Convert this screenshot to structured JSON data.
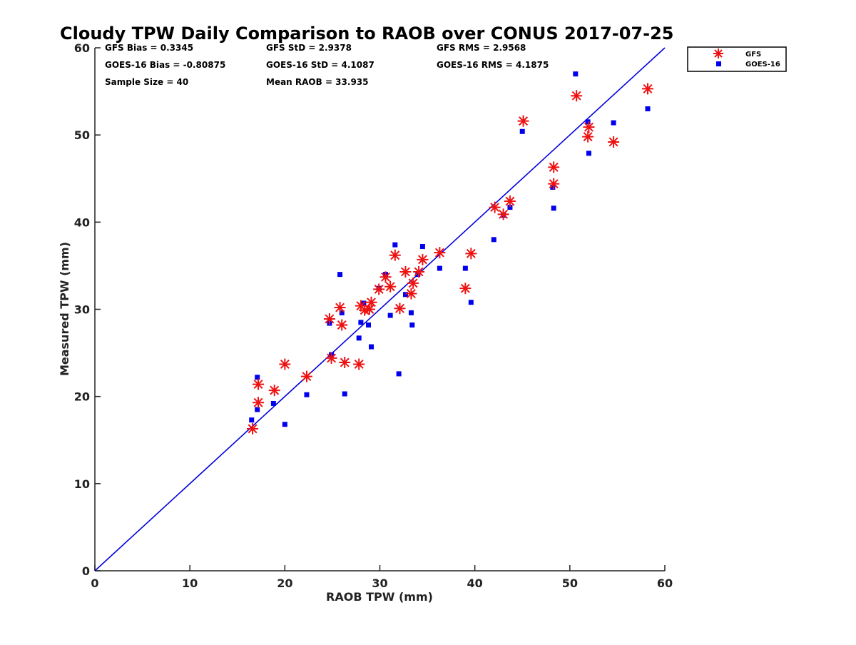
{
  "chart_data": {
    "type": "scatter",
    "title": "Cloudy TPW Daily Comparison to RAOB over CONUS 2017-07-25",
    "xlabel": "RAOB TPW (mm)",
    "ylabel": "Measured TPW (mm)",
    "xlim": [
      0,
      60
    ],
    "ylim": [
      0,
      60
    ],
    "xticks": [
      "0",
      "10",
      "20",
      "30",
      "40",
      "50",
      "60"
    ],
    "yticks": [
      "0",
      "10",
      "20",
      "30",
      "40",
      "50",
      "60"
    ],
    "reference_line": {
      "from": [
        0,
        0
      ],
      "to": [
        60,
        60
      ],
      "color": "#0000dd"
    },
    "stats": {
      "gfs_bias": "GFS Bias = 0.3345",
      "goes_bias": "GOES-16 Bias = -0.80875",
      "sample_size": "Sample Size = 40",
      "gfs_std": "GFS StD = 2.9378",
      "goes_std": "GOES-16 StD = 4.1087",
      "mean_raob": "Mean RAOB = 33.935",
      "gfs_rms": "GFS RMS = 2.9568",
      "goes_rms": "GOES-16 RMS = 4.1875"
    },
    "legend": {
      "position": "outside-top-right",
      "entries": [
        "GFS",
        "GOES-16"
      ]
    },
    "series": [
      {
        "name": "GFS",
        "marker": "asterisk",
        "color": "#ee1111",
        "points": [
          [
            16.6,
            16.3
          ],
          [
            17.2,
            19.3
          ],
          [
            17.2,
            21.4
          ],
          [
            18.9,
            20.7
          ],
          [
            20.0,
            23.7
          ],
          [
            22.3,
            22.3
          ],
          [
            24.7,
            28.9
          ],
          [
            24.9,
            24.4
          ],
          [
            25.8,
            30.2
          ],
          [
            26.0,
            28.2
          ],
          [
            26.3,
            23.9
          ],
          [
            27.8,
            23.7
          ],
          [
            28.0,
            30.4
          ],
          [
            28.4,
            29.9
          ],
          [
            28.9,
            30.0
          ],
          [
            29.1,
            30.8
          ],
          [
            29.9,
            32.3
          ],
          [
            30.6,
            33.7
          ],
          [
            31.1,
            32.6
          ],
          [
            31.6,
            36.2
          ],
          [
            32.1,
            30.1
          ],
          [
            32.7,
            34.3
          ],
          [
            33.3,
            31.8
          ],
          [
            33.5,
            33.0
          ],
          [
            34.1,
            34.3
          ],
          [
            34.5,
            35.7
          ],
          [
            36.3,
            36.5
          ],
          [
            39.0,
            32.4
          ],
          [
            39.6,
            36.4
          ],
          [
            42.1,
            41.7
          ],
          [
            43.0,
            40.9
          ],
          [
            43.7,
            42.4
          ],
          [
            45.1,
            51.6
          ],
          [
            48.3,
            44.4
          ],
          [
            48.3,
            46.3
          ],
          [
            50.7,
            54.5
          ],
          [
            51.9,
            49.8
          ],
          [
            52.0,
            50.9
          ],
          [
            54.6,
            49.2
          ],
          [
            58.2,
            55.3
          ]
        ]
      },
      {
        "name": "GOES-16",
        "marker": "square",
        "color": "#0000ee",
        "points": [
          [
            16.5,
            17.3
          ],
          [
            17.1,
            22.2
          ],
          [
            17.1,
            18.5
          ],
          [
            18.8,
            19.2
          ],
          [
            20.0,
            16.8
          ],
          [
            22.3,
            20.2
          ],
          [
            24.7,
            28.4
          ],
          [
            24.9,
            24.8
          ],
          [
            25.8,
            34.0
          ],
          [
            26.0,
            29.6
          ],
          [
            26.3,
            20.3
          ],
          [
            27.8,
            26.7
          ],
          [
            28.0,
            28.5
          ],
          [
            28.3,
            30.7
          ],
          [
            28.8,
            28.2
          ],
          [
            29.1,
            25.7
          ],
          [
            29.9,
            32.4
          ],
          [
            30.6,
            34.0
          ],
          [
            31.1,
            29.3
          ],
          [
            31.6,
            37.4
          ],
          [
            32.0,
            22.6
          ],
          [
            32.7,
            31.7
          ],
          [
            33.3,
            29.6
          ],
          [
            33.4,
            28.2
          ],
          [
            34.0,
            34.0
          ],
          [
            34.5,
            37.2
          ],
          [
            36.3,
            34.7
          ],
          [
            39.0,
            34.7
          ],
          [
            39.6,
            30.8
          ],
          [
            42.0,
            38.0
          ],
          [
            43.0,
            40.8
          ],
          [
            43.7,
            41.7
          ],
          [
            45.0,
            50.4
          ],
          [
            48.2,
            44.0
          ],
          [
            48.3,
            41.6
          ],
          [
            50.6,
            57.0
          ],
          [
            51.9,
            51.5
          ],
          [
            52.0,
            47.9
          ],
          [
            54.6,
            51.4
          ],
          [
            58.2,
            53.0
          ]
        ]
      }
    ]
  }
}
